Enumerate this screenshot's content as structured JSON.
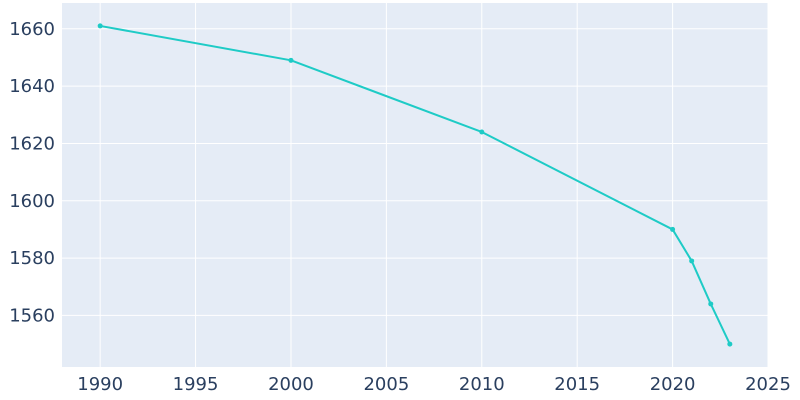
{
  "chart_data": {
    "type": "line",
    "title": "",
    "xlabel": "",
    "ylabel": "",
    "xlim": [
      1988,
      2025
    ],
    "ylim": [
      1542,
      1669
    ],
    "x_ticks": [
      1990,
      1995,
      2000,
      2005,
      2010,
      2015,
      2020,
      2025
    ],
    "y_ticks": [
      1560,
      1580,
      1600,
      1620,
      1640,
      1660
    ],
    "grid": true,
    "legend": "none",
    "colors": {
      "plot_bg": "#e5ecf6",
      "grid": "#ffffff",
      "line": "#1ecbc6",
      "text": "#2a3f5f"
    },
    "series": [
      {
        "x": [
          1990,
          2000,
          2010,
          2020,
          2021,
          2022,
          2023
        ],
        "y": [
          1661,
          1649,
          1624,
          1590,
          1579,
          1564,
          1550
        ]
      }
    ]
  }
}
